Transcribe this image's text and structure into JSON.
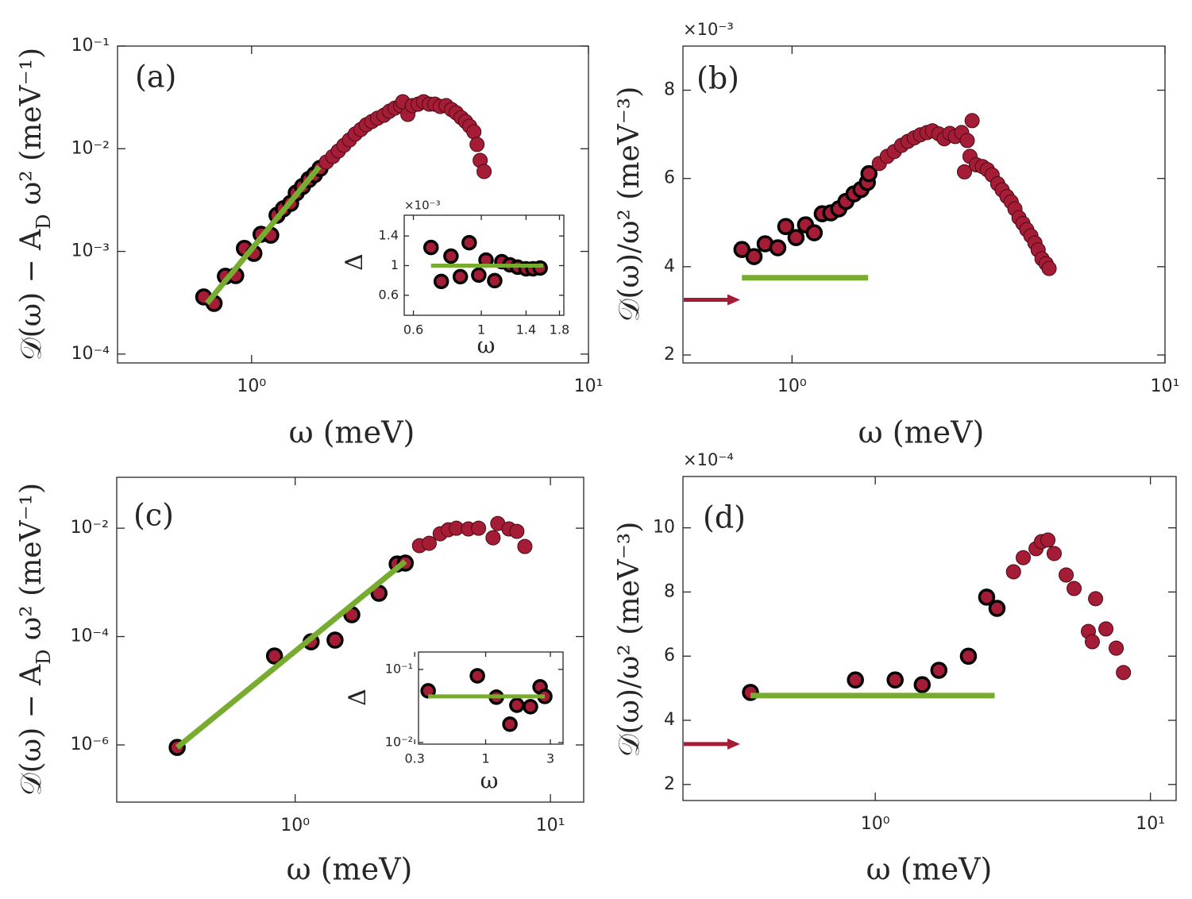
{
  "chart_data": [
    {
      "type": "scatter",
      "label": "(a)",
      "xlabel": "ω (meV)",
      "ylabel": [
        {
          "text": "𝒟(ω) − A"
        },
        {
          "text": "D",
          "sub": true
        },
        {
          "text": " ω² (meV⁻¹)"
        }
      ],
      "xscale": "log",
      "yscale": "log",
      "xlim": [
        0.4,
        10
      ],
      "ylim": [
        8.2e-05,
        0.1
      ],
      "xticks": [
        {
          "value": 1,
          "label": "10⁰"
        },
        {
          "value": 10,
          "label": "10¹"
        }
      ],
      "yticks": [
        {
          "value": 0.0001,
          "label": "10⁻⁴"
        },
        {
          "value": 0.001,
          "label": "10⁻³"
        },
        {
          "value": 0.01,
          "label": "10⁻²"
        },
        {
          "value": 0.1,
          "label": "10⁻¹"
        }
      ],
      "series": [
        {
          "color": "#a51c36",
          "edgecolor": "#000000",
          "edgewidth": 3.5,
          "x": [
            0.721,
            0.774,
            0.836,
            0.897,
            0.952,
            1.016,
            1.067,
            1.14,
            1.19,
            1.243,
            1.306,
            1.357,
            1.416,
            1.48,
            1.537,
            1.597
          ],
          "values": [
            0.00036,
            0.000312,
            0.000572,
            0.000582,
            0.00107,
            0.000957,
            0.00147,
            0.00144,
            0.00225,
            0.0026,
            0.00294,
            0.00371,
            0.00428,
            0.00502,
            0.00558,
            0.00644
          ]
        },
        {
          "color": "#a51c36",
          "edgecolor": "#4a0a14",
          "edgewidth": 1,
          "x": [
            1.668,
            1.743,
            1.81,
            1.88,
            1.953,
            2.03,
            2.11,
            2.19,
            2.275,
            2.364,
            2.47,
            2.565,
            2.665,
            2.77,
            2.81,
            2.91,
            3.0,
            3.12,
            3.24,
            3.37,
            3.5,
            3.63,
            3.78,
            3.92,
            4.05,
            4.19,
            4.32,
            4.44,
            4.57,
            4.67,
            4.77,
            4.9
          ],
          "values": [
            0.00743,
            0.00841,
            0.00953,
            0.0108,
            0.0122,
            0.0139,
            0.0154,
            0.0171,
            0.0184,
            0.0198,
            0.0212,
            0.0232,
            0.0249,
            0.0263,
            0.0287,
            0.0216,
            0.0263,
            0.0272,
            0.0287,
            0.0272,
            0.0272,
            0.0258,
            0.0263,
            0.0241,
            0.0224,
            0.0201,
            0.0184,
            0.0166,
            0.0146,
            0.011,
            0.0077,
            0.006
          ]
        }
      ],
      "fit": {
        "color": "#77ac30",
        "x": [
          0.737,
          1.588
        ],
        "values": [
          0.000312,
          0.00667
        ]
      }
    },
    {
      "type": "scatter",
      "label": "(b)",
      "xlabel": "ω (meV)",
      "ylabel": [
        {
          "text": "𝒟(ω)/ω² (meV⁻³)"
        }
      ],
      "y_multiplier": "×10⁻³",
      "xscale": "log",
      "yscale": "linear",
      "xlim": [
        0.51,
        10
      ],
      "ylim": [
        1.82,
        9
      ],
      "xticks": [
        {
          "value": 1,
          "label": "10⁰"
        },
        {
          "value": 10,
          "label": "10¹"
        }
      ],
      "yticks": [
        2,
        4,
        6,
        8
      ],
      "series": [
        {
          "color": "#a51c36",
          "edgecolor": "#000000",
          "edgewidth": 3.5,
          "x": [
            0.734,
            0.791,
            0.847,
            0.916,
            0.962,
            1.025,
            1.087,
            1.147,
            1.205,
            1.271,
            1.335,
            1.395,
            1.466,
            1.531,
            1.592,
            1.608
          ],
          "values": [
            4.39,
            4.23,
            4.52,
            4.43,
            4.91,
            4.66,
            4.95,
            4.77,
            5.2,
            5.22,
            5.31,
            5.48,
            5.65,
            5.75,
            5.91,
            6.11
          ]
        },
        {
          "color": "#a51c36",
          "edgecolor": "#4a0a14",
          "edgewidth": 1,
          "x": [
            1.714,
            1.8,
            1.88,
            1.966,
            2.045,
            2.127,
            2.21,
            2.3,
            2.38,
            2.475,
            2.56,
            2.65,
            2.74,
            2.85,
            2.95,
            3.04,
            2.9,
            3.0,
            3.12,
            3.24,
            3.34,
            3.44,
            3.56,
            3.66,
            3.77,
            3.87,
            3.96,
            4.06,
            4.16,
            4.26,
            4.37,
            4.48,
            4.57,
            4.68,
            4.8,
            4.89
          ],
          "values": [
            6.34,
            6.5,
            6.61,
            6.75,
            6.84,
            6.92,
            6.99,
            7.04,
            7.08,
            7.01,
            6.9,
            7.02,
            6.95,
            7.04,
            6.86,
            7.31,
            6.15,
            6.5,
            6.31,
            6.27,
            6.2,
            6.08,
            5.88,
            5.74,
            5.59,
            5.47,
            5.31,
            5.11,
            4.98,
            4.84,
            4.7,
            4.54,
            4.38,
            4.18,
            4.07,
            3.96
          ]
        }
      ],
      "fit": {
        "color": "#77ac30",
        "x": [
          0.734,
          1.6
        ],
        "values": [
          3.75,
          3.75
        ]
      },
      "arrow": {
        "value": 3.25,
        "color": "#a51c36"
      }
    },
    {
      "type": "scatter",
      "label": "(c)",
      "xlabel": "ω (meV)",
      "ylabel": [
        {
          "text": "𝒟(ω) − A"
        },
        {
          "text": "D",
          "sub": true
        },
        {
          "text": " ω² (meV⁻¹)"
        }
      ],
      "xscale": "log",
      "yscale": "log",
      "xlim": [
        0.2,
        13.5
      ],
      "ylim": [
        8.8e-08,
        0.087
      ],
      "xticks": [
        {
          "value": 1,
          "label": "10⁰"
        },
        {
          "value": 10,
          "label": "10¹"
        }
      ],
      "yticks": [
        {
          "value": 1e-06,
          "label": "10⁻⁶"
        },
        {
          "value": 0.0001,
          "label": "10⁻⁴"
        },
        {
          "value": 0.01,
          "label": "10⁻²"
        }
      ],
      "series": [
        {
          "color": "#a51c36",
          "edgecolor": "#000000",
          "edgewidth": 3.5,
          "x": [
            0.345,
            0.83,
            1.155,
            1.433,
            1.667,
            2.13,
            2.51,
            2.7
          ],
          "values": [
            9e-07,
            4.38e-05,
            8e-05,
            8.6e-05,
            0.000253,
            0.000629,
            0.00219,
            0.00227
          ]
        },
        {
          "color": "#a51c36",
          "edgecolor": "#4a0a14",
          "edgewidth": 1,
          "x": [
            3.07,
            3.35,
            3.7,
            3.98,
            4.28,
            4.77,
            5.23,
            5.96,
            6.22,
            6.88,
            7.39,
            7.94
          ],
          "values": [
            0.00476,
            0.00527,
            0.0079,
            0.00935,
            0.01,
            0.0097,
            0.01,
            0.00667,
            0.0122,
            0.0097,
            0.00874,
            0.0046
          ]
        }
      ],
      "fit": {
        "color": "#77ac30",
        "x": [
          0.345,
          2.7
        ],
        "values": [
          9e-07,
          0.00243
        ]
      }
    },
    {
      "type": "scatter",
      "label": "(d)",
      "xlabel": "ω (meV)",
      "ylabel": [
        {
          "text": "𝒟(ω)/ω² (meV⁻³)"
        }
      ],
      "y_multiplier": "×10⁻⁴",
      "xscale": "log",
      "yscale": "linear",
      "xlim": [
        0.2,
        12.4
      ],
      "ylim": [
        1.5,
        11.6
      ],
      "xticks": [
        {
          "value": 1,
          "label": "10⁰"
        },
        {
          "value": 10,
          "label": "10¹"
        }
      ],
      "yticks": [
        2,
        4,
        6,
        8,
        10
      ],
      "series": [
        {
          "color": "#a51c36",
          "edgecolor": "#000000",
          "edgewidth": 3.5,
          "x": [
            0.352,
            0.847,
            1.181,
            1.481,
            1.703,
            2.18,
            2.54,
            2.77
          ],
          "values": [
            4.87,
            5.26,
            5.26,
            5.11,
            5.56,
            6.0,
            7.84,
            7.49
          ]
        },
        {
          "color": "#a51c36",
          "edgecolor": "#4a0a14",
          "edgewidth": 1,
          "x": [
            3.18,
            3.45,
            3.84,
            4.02,
            4.24,
            4.47,
            4.94,
            5.28,
            5.95,
            6.15,
            6.32,
            6.89,
            7.51,
            7.98
          ],
          "values": [
            8.63,
            9.07,
            9.35,
            9.57,
            9.62,
            9.2,
            8.53,
            8.11,
            6.77,
            6.45,
            7.79,
            6.85,
            6.25,
            5.49
          ]
        }
      ],
      "fit": {
        "color": "#77ac30",
        "x": [
          0.352,
          2.715
        ],
        "values": [
          4.77,
          4.77
        ]
      },
      "arrow": {
        "value": 3.26,
        "color": "#a51c36"
      }
    },
    {
      "type": "scatter",
      "xlabel": "ω",
      "ylabel": [
        {
          "text": "Δ"
        }
      ],
      "y_multiplier": "×10⁻³",
      "xscale": "log",
      "yscale": "linear",
      "xlim": [
        0.56,
        1.86
      ],
      "ylim": [
        0.33,
        1.68
      ],
      "xticks": [
        0.6,
        1,
        1.4,
        1.8
      ],
      "yticks": [
        0.6,
        1,
        1.4
      ],
      "series": [
        {
          "color": "#a51c36",
          "edgecolor": "#000000",
          "edgewidth": 3.5,
          "x": [
            0.685,
            0.74,
            0.796,
            0.854,
            0.913,
            0.981,
            1.036,
            1.106,
            1.167,
            1.24,
            1.315,
            1.4,
            1.475,
            1.556
          ],
          "values": [
            1.245,
            0.787,
            1.128,
            0.851,
            1.309,
            0.872,
            1.075,
            0.797,
            1.053,
            1.011,
            0.979,
            0.957,
            0.957,
            0.968
          ]
        }
      ],
      "fit": {
        "color": "#77ac30",
        "x": [
          0.685,
          1.594
        ],
        "values": [
          1,
          1
        ]
      }
    },
    {
      "type": "scatter",
      "xlabel": "ω",
      "ylabel": [
        {
          "text": "Δ"
        }
      ],
      "xscale": "log",
      "yscale": "log",
      "xlim": [
        0.32,
        3.72
      ],
      "ylim": [
        0.0095,
        0.173
      ],
      "xticks": [
        0.3,
        1,
        3
      ],
      "yticks": [
        {
          "value": 0.01,
          "label": "10⁻²"
        },
        {
          "value": 0.1,
          "label": "10⁻¹"
        }
      ],
      "series": [
        {
          "color": "#a51c36",
          "edgecolor": "#000000",
          "edgewidth": 3.5,
          "x": [
            0.377,
            0.869,
            1.2,
            1.51,
            1.7,
            2.14,
            2.52,
            2.73
          ],
          "values": [
            0.0509,
            0.0818,
            0.0417,
            0.0178,
            0.0324,
            0.0309,
            0.0577,
            0.0427
          ]
        }
      ],
      "fit": {
        "color": "#77ac30",
        "x": [
          0.377,
          2.73
        ],
        "values": [
          0.0427,
          0.0427
        ]
      }
    }
  ]
}
